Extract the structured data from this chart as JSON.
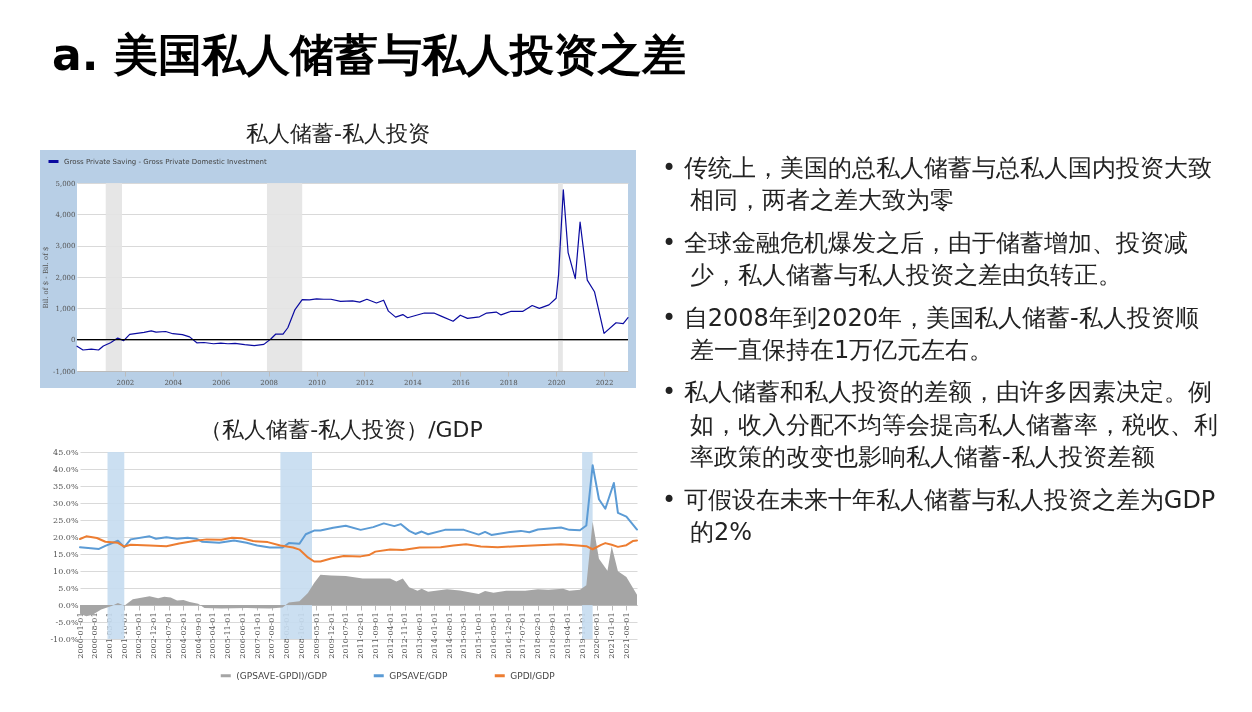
{
  "chart_data": [
    {
      "type": "line",
      "title": "私人储蓄-私人投资",
      "ylabel": "Bil. of $ - Bil. of $",
      "legend": "top left",
      "grid": "y",
      "xlim": [
        2000,
        2023
      ],
      "xticks": [
        2002,
        2004,
        2006,
        2008,
        2010,
        2012,
        2014,
        2016,
        2018,
        2020,
        2022
      ],
      "ylim": [
        -1000,
        5000
      ],
      "yticks": [
        {
          "value": -1000,
          "label": "-1,000"
        },
        0,
        {
          "value": 1000,
          "label": "1,000"
        },
        {
          "value": 2000,
          "label": "2,000"
        },
        {
          "value": 3000,
          "label": "3,000"
        },
        {
          "value": 4000,
          "label": "4,000"
        },
        {
          "value": 5000,
          "label": "5,000"
        }
      ],
      "bands": [
        {
          "axis": "x",
          "from": 2001.2,
          "to": 2001.88,
          "color": "#e3e3e3"
        },
        {
          "axis": "x",
          "from": 2007.93,
          "to": 2009.4,
          "color": "#e3e3e3"
        },
        {
          "axis": "x",
          "from": 2020.08,
          "to": 2020.28,
          "color": "#e3e3e3"
        }
      ],
      "ref_lines": [
        {
          "axis": "y",
          "value": 0,
          "color": "#000000"
        }
      ],
      "x": [
        2000.0,
        2000.25,
        2000.6,
        2000.9,
        2001.1,
        2001.4,
        2001.7,
        2001.95,
        2002.2,
        2002.5,
        2002.8,
        2003.1,
        2003.3,
        2003.7,
        2004.0,
        2004.4,
        2004.7,
        2005.0,
        2005.3,
        2005.7,
        2006.0,
        2006.3,
        2006.6,
        2007.0,
        2007.4,
        2007.8,
        2008.1,
        2008.3,
        2008.6,
        2008.8,
        2009.1,
        2009.4,
        2009.7,
        2010.0,
        2010.3,
        2010.6,
        2011.0,
        2011.5,
        2011.8,
        2012.1,
        2012.5,
        2012.8,
        2013.0,
        2013.3,
        2013.6,
        2013.8,
        2014.5,
        2014.9,
        2015.2,
        2015.7,
        2016.0,
        2016.3,
        2016.8,
        2017.1,
        2017.5,
        2017.7,
        2018.1,
        2018.6,
        2019.0,
        2019.3,
        2019.7,
        2020.0,
        2020.1,
        2020.3,
        2020.5,
        2020.8,
        2021.0,
        2021.3,
        2021.6,
        2022.0,
        2022.5,
        2022.8,
        2023.0
      ],
      "series": [
        {
          "name": "Gross Private Saving - Gross Private Domestic Investment",
          "color": "#0a0aa0",
          "values": [
            -210,
            -330,
            -300,
            -330,
            -200,
            -100,
            50,
            -30,
            170,
            200,
            230,
            280,
            240,
            260,
            190,
            160,
            90,
            -100,
            -90,
            -130,
            -110,
            -130,
            -120,
            -160,
            -190,
            -150,
            30,
            180,
            180,
            380,
            960,
            1280,
            1270,
            1300,
            1290,
            1290,
            1220,
            1240,
            1200,
            1290,
            1170,
            1260,
            910,
            720,
            800,
            700,
            850,
            850,
            750,
            590,
            780,
            680,
            730,
            850,
            880,
            790,
            900,
            900,
            1090,
            1000,
            1110,
            1320,
            2050,
            4780,
            2780,
            1950,
            3750,
            1900,
            1530,
            200,
            540,
            510,
            700
          ]
        }
      ]
    },
    {
      "type": "line",
      "title": "（私人储蓄-私人投资）/GDP",
      "legend": "bottom",
      "grid": "y",
      "xlim": [
        "2000-01-01",
        "2022-01-01"
      ],
      "xticks": [
        "2000-01-01",
        "2000-08-01",
        "2001-03-01",
        "2001-10-01",
        "2002-05-01",
        "2002-12-01",
        "2003-07-01",
        "2004-02-01",
        "2004-09-01",
        "2005-04-01",
        "2005-11-01",
        "2006-06-01",
        "2007-01-01",
        "2007-08-01",
        "2008-03-01",
        "2008-10-01",
        "2009-05-01",
        "2009-12-01",
        "2010-07-01",
        "2011-02-01",
        "2011-09-01",
        "2012-04-01",
        "2012-11-01",
        "2013-06-01",
        "2014-01-01",
        "2014-08-01",
        "2015-03-01",
        "2015-10-01",
        "2016-05-01",
        "2016-12-01",
        "2017-07-01",
        "2018-02-01",
        "2018-09-01",
        "2019-04-01",
        "2019-11-01",
        "2020-06-01",
        "2021-01-01",
        "2021-08-01"
      ],
      "ylim": [
        -10,
        45
      ],
      "yticks": [
        {
          "value": -10,
          "label": "-10.0%"
        },
        {
          "value": -5,
          "label": "-5.0%"
        },
        {
          "value": 0,
          "label": "0.0%"
        },
        {
          "value": 5,
          "label": "5.0%"
        },
        {
          "value": 10,
          "label": "10.0%"
        },
        {
          "value": 15,
          "label": "15.0%"
        },
        {
          "value": 20,
          "label": "20.0%"
        },
        {
          "value": 25,
          "label": "25.0%"
        },
        {
          "value": 30,
          "label": "30.0%"
        },
        {
          "value": 35,
          "label": "35.0%"
        },
        {
          "value": 40,
          "label": "40.0%"
        },
        {
          "value": 45,
          "label": "45.0%"
        }
      ],
      "bands": [
        {
          "axis": "x",
          "from": "2001-02-01",
          "to": "2001-10-01",
          "color": "#c5dcf0"
        },
        {
          "axis": "x",
          "from": "2007-12-01",
          "to": "2009-03-01",
          "color": "#c5dcf0"
        },
        {
          "axis": "x",
          "from": "2019-11-01",
          "to": "2020-04-01",
          "color": "#c5dcf0"
        }
      ],
      "series": [
        {
          "type": "area",
          "name": "(GPSAVE-GPDI)/GDP",
          "color": "#a5a5a5",
          "x": [
            "2000-01",
            "2000-04",
            "2000-07",
            "2000-11",
            "2001-04",
            "2001-07",
            "2001-10",
            "2002-02",
            "2002-10",
            "2003-02",
            "2003-05",
            "2003-08",
            "2003-11",
            "2004-02",
            "2004-05",
            "2004-09",
            "2004-12",
            "2005-08",
            "2006-08",
            "2007-07",
            "2008-01",
            "2008-04",
            "2008-09",
            "2009-01",
            "2009-04",
            "2009-07",
            "2009-12",
            "2010-07",
            "2011-03",
            "2011-10",
            "2012-04",
            "2012-07",
            "2012-10",
            "2013-01",
            "2013-05",
            "2013-07",
            "2013-10",
            "2014-07",
            "2015-01",
            "2015-10",
            "2016-01",
            "2016-05",
            "2016-11",
            "2017-08",
            "2018-02",
            "2018-07",
            "2019-02",
            "2019-05",
            "2019-10",
            "2020-01",
            "2020-04",
            "2020-07",
            "2020-11",
            "2021-01",
            "2021-04",
            "2021-08",
            "2022-01"
          ],
          "values": [
            -2.6,
            -3.3,
            -2.9,
            -1.3,
            -0.3,
            0.6,
            -0.2,
            1.7,
            2.6,
            2.0,
            2.4,
            2.2,
            1.3,
            1.5,
            0.9,
            0.4,
            -0.9,
            -1.0,
            -0.9,
            -1.0,
            -0.7,
            0.7,
            1.1,
            3.5,
            6.5,
            8.9,
            8.7,
            8.5,
            7.8,
            7.8,
            7.8,
            6.9,
            7.8,
            5.2,
            4.2,
            4.8,
            3.9,
            4.6,
            4.3,
            3.2,
            4.1,
            3.6,
            4.2,
            4.2,
            4.6,
            4.5,
            4.8,
            4.2,
            4.5,
            5.8,
            24.5,
            13.6,
            10.1,
            17.3,
            9.9,
            8.2,
            3.0
          ]
        },
        {
          "type": "line",
          "name": "GPSAVE/GDP",
          "color": "#5b9bd5",
          "x": [
            "2000-01",
            "2000-10",
            "2001-01",
            "2001-07",
            "2001-10",
            "2002-01",
            "2002-10",
            "2003-01",
            "2003-06",
            "2003-11",
            "2004-04",
            "2004-08",
            "2004-11",
            "2005-07",
            "2006-02",
            "2006-08",
            "2007-01",
            "2007-07",
            "2008-01",
            "2008-04",
            "2008-09",
            "2008-12",
            "2009-04",
            "2009-07",
            "2010-01",
            "2010-07",
            "2011-02",
            "2011-08",
            "2012-01",
            "2012-06",
            "2012-09",
            "2013-01",
            "2013-04",
            "2013-07",
            "2013-10",
            "2014-06",
            "2015-03",
            "2015-10",
            "2016-01",
            "2016-04",
            "2017-01",
            "2017-06",
            "2017-10",
            "2018-02",
            "2019-01",
            "2019-05",
            "2019-10",
            "2020-01",
            "2020-04",
            "2020-07",
            "2020-10",
            "2021-02",
            "2021-04",
            "2021-08",
            "2022-01"
          ],
          "values": [
            17.0,
            16.5,
            17.4,
            18.9,
            17.0,
            19.3,
            20.2,
            19.5,
            19.9,
            19.5,
            19.8,
            19.5,
            18.6,
            18.3,
            19.0,
            18.3,
            17.5,
            16.9,
            16.9,
            18.2,
            18.0,
            20.8,
            21.9,
            21.9,
            22.7,
            23.3,
            22.1,
            22.9,
            24.0,
            23.2,
            23.8,
            21.8,
            20.9,
            21.6,
            20.8,
            22.1,
            22.1,
            20.7,
            21.5,
            20.6,
            21.5,
            21.8,
            21.4,
            22.2,
            22.8,
            22.1,
            22.0,
            23.4,
            41.1,
            31.1,
            28.3,
            35.9,
            27.1,
            26.0,
            22.2
          ]
        },
        {
          "type": "line",
          "name": "GPDI/GDP",
          "color": "#ed7d31",
          "x": [
            "2000-01",
            "2000-04",
            "2000-09",
            "2001-01",
            "2001-07",
            "2001-10",
            "2002-01",
            "2002-10",
            "2003-06",
            "2003-12",
            "2004-07",
            "2005-01",
            "2005-08",
            "2006-01",
            "2006-06",
            "2006-11",
            "2007-06",
            "2007-12",
            "2008-06",
            "2008-09",
            "2009-01",
            "2009-04",
            "2009-07",
            "2009-12",
            "2010-06",
            "2011-02",
            "2011-06",
            "2011-09",
            "2012-04",
            "2012-10",
            "2013-06",
            "2014-04",
            "2014-10",
            "2015-04",
            "2015-11",
            "2016-07",
            "2017-04",
            "2018-02",
            "2019-01",
            "2019-09",
            "2020-01",
            "2020-04",
            "2020-08",
            "2020-10",
            "2021-01",
            "2021-04",
            "2021-08",
            "2021-11",
            "2022-01"
          ],
          "values": [
            19.4,
            20.2,
            19.7,
            18.6,
            18.3,
            17.2,
            17.7,
            17.5,
            17.3,
            18.1,
            18.8,
            19.3,
            19.2,
            19.8,
            19.6,
            18.8,
            18.5,
            17.5,
            16.9,
            16.3,
            14.0,
            12.8,
            12.8,
            13.7,
            14.4,
            14.3,
            14.7,
            15.7,
            16.3,
            16.2,
            16.9,
            17.0,
            17.5,
            17.9,
            17.2,
            17.0,
            17.3,
            17.6,
            17.9,
            17.5,
            17.3,
            16.4,
            17.7,
            18.2,
            17.7,
            17.1,
            17.6,
            18.8,
            19.0
          ]
        }
      ]
    },
    {
      "type": "other",
      "title": "a. 美国私人储蓄与私人投资之差",
      "annotations": [
        "• 传统上，美国的总私人储蓄与总私人国内投资大致相同，两者之差大致为零",
        "• 全球金融危机爆发之后，由于储蓄增加、投资减少，私人储蓄与私人投资之差由负转正。",
        "• 自2008年到2020年，美国私人储蓄-私人投资顺差一直保持在1万亿元左右。",
        "• 私人储蓄和私人投资的差额，由许多因素决定。例如，收入分配不均等会提高私人储蓄率，税收、利率政策的改变也影响私人储蓄-私人投资差额",
        "• 可假设在未来十年私人储蓄与私人投资之差为GDP的2%"
      ]
    }
  ]
}
